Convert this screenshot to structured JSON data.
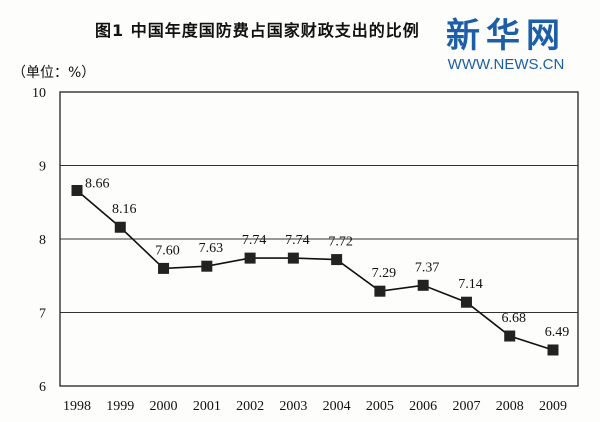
{
  "chart_data": {
    "type": "line",
    "title": "图1 中国年度国防费占国家财政支出的比例",
    "unit_label": "（单位：%）",
    "categories": [
      "1998",
      "1999",
      "2000",
      "2001",
      "2002",
      "2003",
      "2004",
      "2005",
      "2006",
      "2007",
      "2008",
      "2009"
    ],
    "series": [
      {
        "values": [
          8.66,
          8.16,
          7.6,
          7.63,
          7.74,
          7.74,
          7.72,
          7.29,
          7.37,
          7.14,
          6.68,
          6.49
        ]
      }
    ],
    "data_labels": [
      "8.66",
      "8.16",
      "7.60",
      "7.63",
      "7.74",
      "7.74",
      "7.72",
      "7.29",
      "7.37",
      "7.14",
      "6.68",
      "6.49"
    ],
    "ylim": [
      6,
      10
    ],
    "yticks": [
      "6",
      "7",
      "8",
      "9",
      "10"
    ],
    "grid": "horizontal",
    "marker": "square",
    "line_color": "#111111"
  },
  "watermark": {
    "cn": "新华网",
    "url": "WWW.NEWS.CN",
    "color": "#1c5fa8"
  }
}
